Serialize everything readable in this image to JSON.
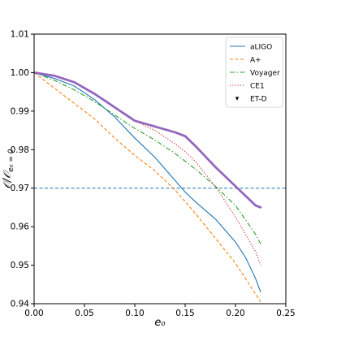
{
  "chart_data": {
    "type": "line",
    "title": "",
    "xlabel": "e₀",
    "ylabel": "𝒪/𝒪",
    "ylabel_sub": "e₀ = 0",
    "xlim": [
      0.0,
      0.25
    ],
    "ylim": [
      0.94,
      1.01
    ],
    "xticks": [
      "0.00",
      "0.05",
      "0.10",
      "0.15",
      "0.20",
      "0.25"
    ],
    "yticks": [
      "0.94",
      "0.95",
      "0.96",
      "0.97",
      "0.98",
      "0.99",
      "1.00",
      "1.01"
    ],
    "grid": false,
    "legend_position": "top-right",
    "reference_line": {
      "y": 0.97,
      "color": "#1f77b4",
      "style": "dashed"
    },
    "series": [
      {
        "name": "aLIGO",
        "color": "#1f77b4",
        "style": "solid",
        "x": [
          0,
          0.02,
          0.04,
          0.06,
          0.08,
          0.1,
          0.12,
          0.14,
          0.15,
          0.16,
          0.18,
          0.2,
          0.21,
          0.22,
          0.225
        ],
        "y": [
          1.0,
          0.9985,
          0.9965,
          0.993,
          0.9885,
          0.983,
          0.978,
          0.972,
          0.969,
          0.9665,
          0.962,
          0.956,
          0.952,
          0.9465,
          0.943
        ]
      },
      {
        "name": "A+",
        "color": "#ff7f0e",
        "style": "dashed",
        "x": [
          0,
          0.02,
          0.04,
          0.06,
          0.08,
          0.1,
          0.12,
          0.14,
          0.16,
          0.18,
          0.2,
          0.22,
          0.225
        ],
        "y": [
          1.0,
          0.996,
          0.992,
          0.988,
          0.983,
          0.9785,
          0.9745,
          0.9695,
          0.9635,
          0.957,
          0.9505,
          0.9425,
          0.9405
        ]
      },
      {
        "name": "Voyager",
        "color": "#2ca02c",
        "style": "dashdot",
        "x": [
          0,
          0.02,
          0.04,
          0.06,
          0.08,
          0.1,
          0.12,
          0.14,
          0.16,
          0.18,
          0.2,
          0.22,
          0.225
        ],
        "y": [
          1.0,
          0.998,
          0.9955,
          0.9925,
          0.989,
          0.9855,
          0.9825,
          0.979,
          0.975,
          0.9705,
          0.9655,
          0.958,
          0.9555
        ]
      },
      {
        "name": "CE1",
        "color": "#d62728",
        "style": "dotted",
        "x": [
          0,
          0.02,
          0.04,
          0.06,
          0.08,
          0.1,
          0.12,
          0.14,
          0.15,
          0.16,
          0.18,
          0.2,
          0.22,
          0.225
        ],
        "y": [
          1.0,
          0.9992,
          0.9975,
          0.9945,
          0.991,
          0.9875,
          0.985,
          0.9815,
          0.9795,
          0.977,
          0.9705,
          0.9625,
          0.9535,
          0.95
        ]
      },
      {
        "name": "ET-D",
        "color": "#9467bd",
        "style": "markers",
        "x": [
          0,
          0.02,
          0.04,
          0.06,
          0.08,
          0.1,
          0.12,
          0.14,
          0.15,
          0.16,
          0.18,
          0.2,
          0.21,
          0.22,
          0.225
        ],
        "y": [
          1.0,
          0.9992,
          0.9975,
          0.9945,
          0.991,
          0.9875,
          0.986,
          0.9845,
          0.9835,
          0.981,
          0.9755,
          0.9705,
          0.968,
          0.9655,
          0.965
        ]
      }
    ]
  }
}
